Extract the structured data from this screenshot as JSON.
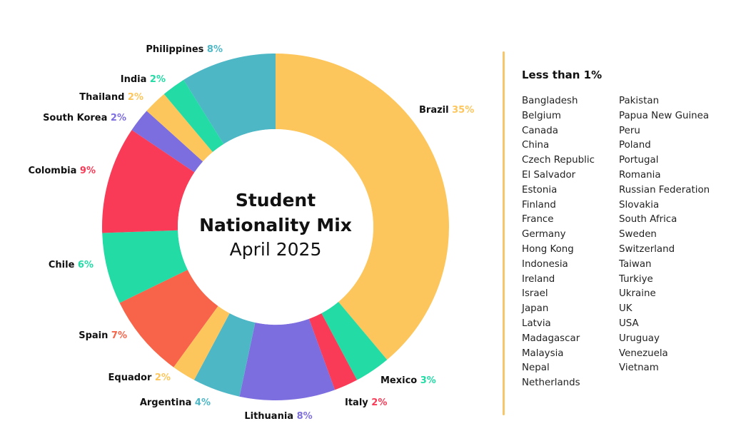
{
  "chart_data": {
    "type": "pie",
    "title": "Student Nationality Mix",
    "subtitle": "April 2025",
    "slices": [
      {
        "name": "Brazil",
        "label": "35%",
        "value": 35,
        "color": "#fdc65c"
      },
      {
        "name": "Mexico",
        "label": "3%",
        "value": 3,
        "color": "#23dba5"
      },
      {
        "name": "Italy",
        "label": "2%",
        "value": 2,
        "color": "#f93b57"
      },
      {
        "name": "Lithuania",
        "label": "8%",
        "value": 8,
        "color": "#7d6ee0"
      },
      {
        "name": "Argentina",
        "label": "4%",
        "value": 4,
        "color": "#4db7c6"
      },
      {
        "name": "Equador",
        "label": "2%",
        "value": 2,
        "color": "#fdc65c"
      },
      {
        "name": "Spain",
        "label": "7%",
        "value": 7,
        "color": "#f8644a"
      },
      {
        "name": "Chile",
        "label": "6%",
        "value": 6,
        "color": "#23dba5"
      },
      {
        "name": "Colombia",
        "label": "9%",
        "value": 9,
        "color": "#f93b57"
      },
      {
        "name": "South Korea",
        "label": "2%",
        "value": 2,
        "color": "#7d6ee0"
      },
      {
        "name": "Thailand",
        "label": "2%",
        "value": 2,
        "color": "#fdc65c"
      },
      {
        "name": "India",
        "label": "2%",
        "value": 2,
        "color": "#23dba5"
      },
      {
        "name": "Philippines",
        "label": "8%",
        "value": 8,
        "color": "#4db7c6"
      }
    ]
  },
  "minor": {
    "title": "Less than 1%",
    "left": [
      "Bangladesh",
      "Belgium",
      "Canada",
      "China",
      "Czech Republic",
      "El Salvador",
      "Estonia",
      "Finland",
      "France",
      "Germany",
      "Hong Kong",
      "Indonesia",
      "Ireland",
      "Israel",
      "Japan",
      "Latvia",
      "Madagascar",
      "Malaysia",
      "Nepal",
      "Netherlands"
    ],
    "right": [
      "Pakistan",
      "Papua New Guinea",
      "Peru",
      "Poland",
      "Portugal",
      "Romania",
      "Russian Federation",
      "Slovakia",
      "South Africa",
      "Sweden",
      "Switzerland",
      "Taiwan",
      "Turkiye",
      "Ukraine",
      "UK",
      "USA",
      "Uruguay",
      "Venezuela",
      "Vietnam"
    ]
  }
}
